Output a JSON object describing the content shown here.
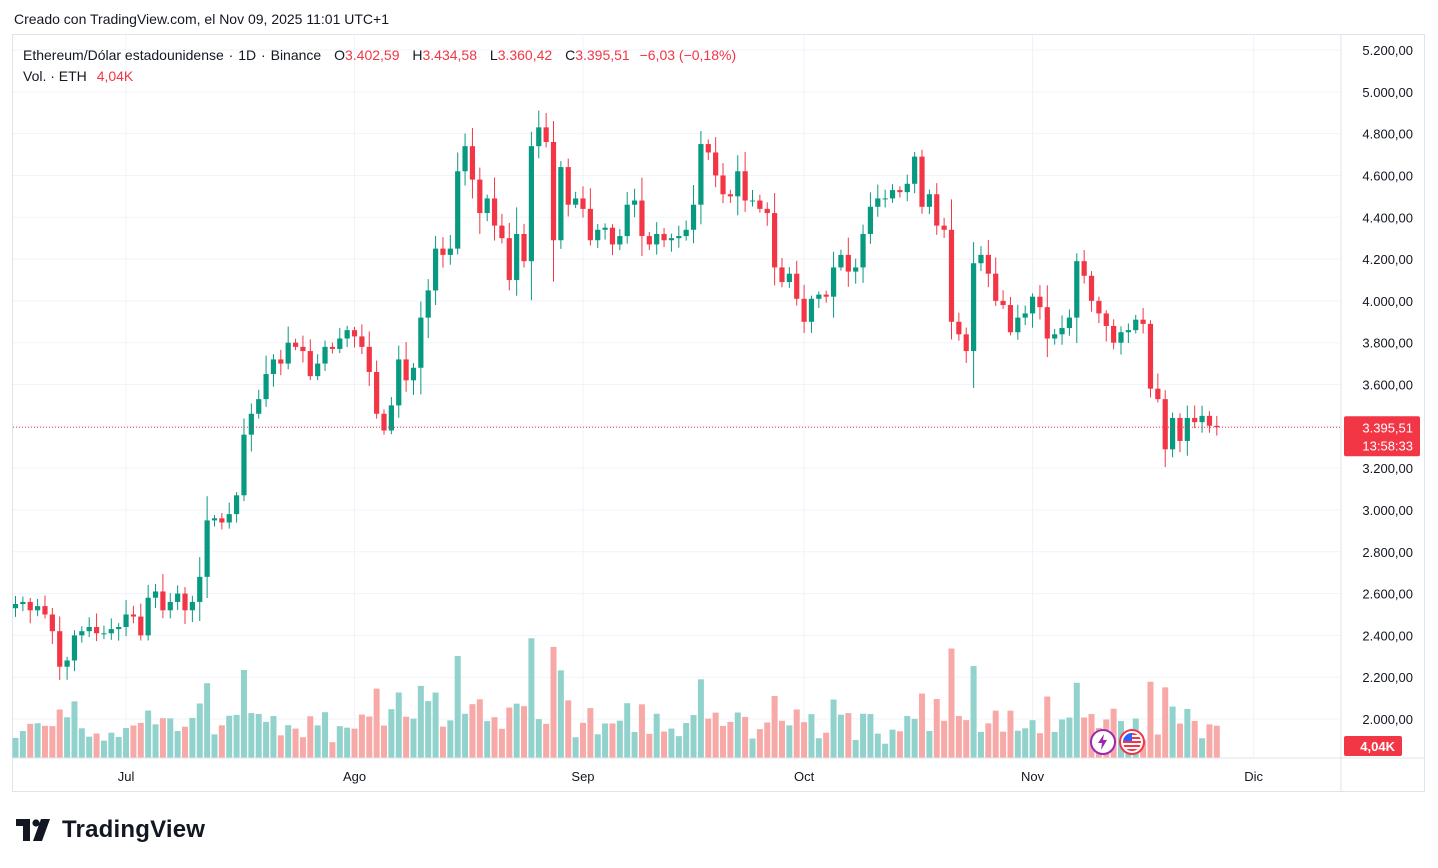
{
  "caption": "Creado con TradingView.com, el Nov 09, 2025 11:01 UTC+1",
  "legend": {
    "symbol": "Ethereum/Dólar estadounidense",
    "interval": "1D",
    "exchange": "Binance",
    "open_label": "O",
    "open": "3.402,59",
    "high_label": "H",
    "high": "3.434,58",
    "low_label": "L",
    "low": "3.360,42",
    "close_label": "C",
    "close": "3.395,51",
    "change": "−6,03 (−0,18%)",
    "volume_label": "Vol. · ETH",
    "volume_value": "4,04K"
  },
  "price_badge": {
    "price": "3.395,51",
    "countdown": "13:58:33"
  },
  "volume_badge": "4,04K",
  "brand": "TradingView",
  "colors": {
    "up": "#089981",
    "down": "#f23645",
    "up_vol": "#92d2cc",
    "down_vol": "#f7a9a7",
    "grid": "#f0f3fa"
  },
  "icons": [
    "lightning-icon",
    "us-flag-icon"
  ],
  "chart_data": {
    "type": "candlestick",
    "y_axis": {
      "min": 1800,
      "max": 5300,
      "ticks": [
        "2.000,00",
        "2.200,00",
        "2.400,00",
        "2.600,00",
        "2.800,00",
        "3.000,00",
        "3.200,00",
        "3.400,00",
        "3.600,00",
        "3.800,00",
        "4.000,00",
        "4.200,00",
        "4.400,00",
        "4.600,00",
        "4.800,00",
        "5.000,00",
        "5.200,00"
      ]
    },
    "x_axis": {
      "ticks": [
        {
          "label": "Jul",
          "date": "2025-07-01"
        },
        {
          "label": "Ago",
          "date": "2025-08-01"
        },
        {
          "label": "Sep",
          "date": "2025-09-01"
        },
        {
          "label": "Oct",
          "date": "2025-10-01"
        },
        {
          "label": "Nov",
          "date": "2025-11-01"
        },
        {
          "label": "Dic",
          "date": "2025-12-01"
        }
      ]
    },
    "start_date": "2025-06-16",
    "last_price": 3395.51,
    "closes": [
      2550,
      2560,
      2520,
      2540,
      2500,
      2420,
      2250,
      2280,
      2400,
      2420,
      2440,
      2410,
      2410,
      2430,
      2440,
      2500,
      2490,
      2400,
      2580,
      2610,
      2520,
      2560,
      2600,
      2520,
      2560,
      2680,
      2950,
      2960,
      2940,
      2980,
      3070,
      3360,
      3460,
      3530,
      3650,
      3720,
      3700,
      3800,
      3780,
      3760,
      3640,
      3700,
      3780,
      3770,
      3820,
      3860,
      3830,
      3780,
      3660,
      3460,
      3380,
      3500,
      3720,
      3620,
      3680,
      3920,
      4050,
      4250,
      4220,
      4250,
      4620,
      4740,
      4580,
      4420,
      4490,
      4360,
      4300,
      4100,
      4320,
      4190,
      4740,
      4830,
      4760,
      4290,
      4640,
      4460,
      4490,
      4440,
      4290,
      4340,
      4350,
      4270,
      4310,
      4460,
      4480,
      4310,
      4270,
      4320,
      4290,
      4300,
      4310,
      4340,
      4460,
      4750,
      4710,
      4600,
      4510,
      4500,
      4620,
      4480,
      4480,
      4440,
      4420,
      4160,
      4090,
      4130,
      4010,
      3900,
      4010,
      4030,
      4020,
      4160,
      4220,
      4140,
      4160,
      4320,
      4450,
      4490,
      4490,
      4530,
      4520,
      4560,
      4690,
      4450,
      4510,
      4360,
      4340,
      3900,
      3840,
      3760,
      4180,
      4220,
      4130,
      4000,
      3980,
      3850,
      3920,
      3940,
      4020,
      3970,
      3820,
      3840,
      3870,
      3920,
      4190,
      4120,
      4000,
      3940,
      3880,
      3800,
      3850,
      3860,
      3910,
      3890,
      3580,
      3530,
      3290,
      3440,
      3330,
      3440,
      3420,
      3450,
      3402.59,
      3395.51
    ]
  }
}
